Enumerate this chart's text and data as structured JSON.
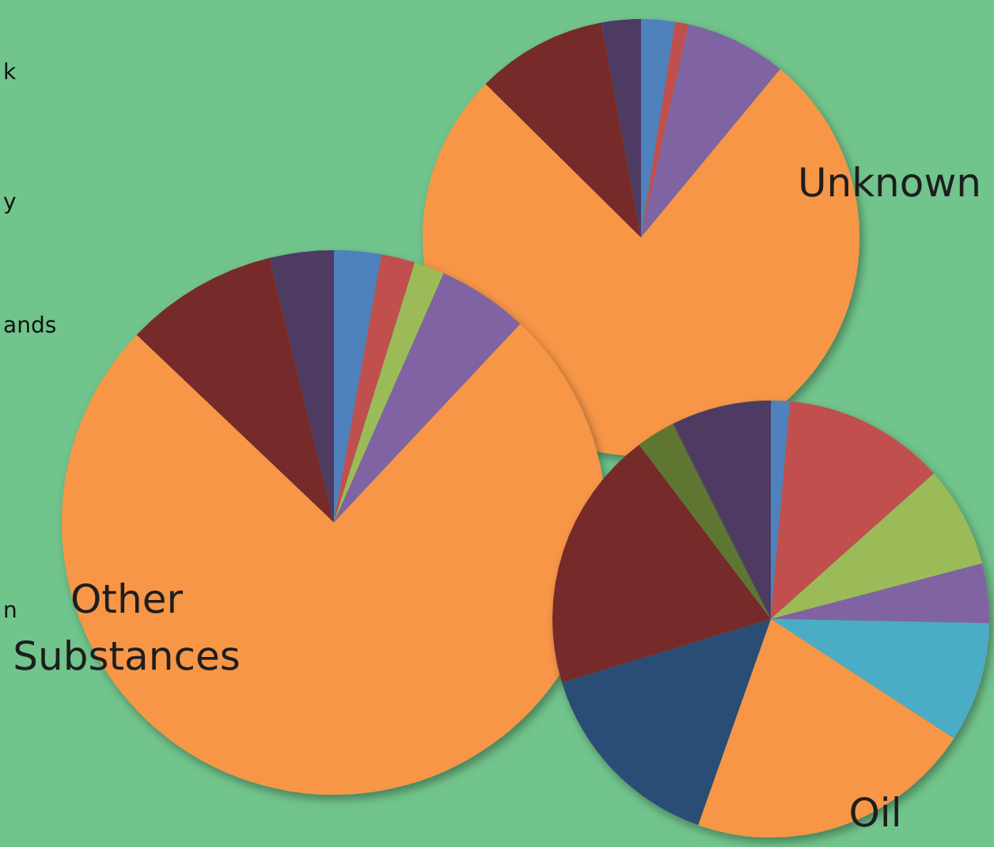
{
  "chart_data": [
    {
      "type": "pie",
      "title": "Unknown",
      "categories": [
        null,
        null,
        null,
        null,
        null,
        null
      ],
      "values": [
        2.5,
        1,
        7.5,
        76.4,
        9.7,
        2.9
      ],
      "colors": [
        "#4f81bd",
        "#c0504d",
        "#8064a2",
        "#f79646",
        "#772c2a",
        "#4d3b62"
      ],
      "annotations": [
        "k",
        "y",
        "ands",
        "n"
      ]
    },
    {
      "type": "pie",
      "title": "Other Substances",
      "categories": [
        null,
        null,
        null,
        null,
        null,
        null,
        null
      ],
      "values": [
        2.8,
        2,
        1.8,
        5.4,
        75.1,
        9.1,
        3.8
      ],
      "colors": [
        "#4f81bd",
        "#c0504d",
        "#9bbb59",
        "#8064a2",
        "#f79646",
        "#772c2a",
        "#4d3b62"
      ]
    },
    {
      "type": "pie",
      "title": "Oil",
      "categories": [
        null,
        null,
        null,
        null,
        null,
        null,
        null,
        null,
        null,
        null
      ],
      "values": [
        1.4,
        12,
        7.5,
        4.4,
        8.9,
        21.2,
        14.9,
        19.4,
        2.9,
        7.4
      ],
      "colors": [
        "#4f81bd",
        "#c0504d",
        "#9bbb59",
        "#8064a2",
        "#4bacc6",
        "#f79646",
        "#2c4d75",
        "#772c2a",
        "#5f7530",
        "#4d3b62"
      ]
    }
  ]
}
